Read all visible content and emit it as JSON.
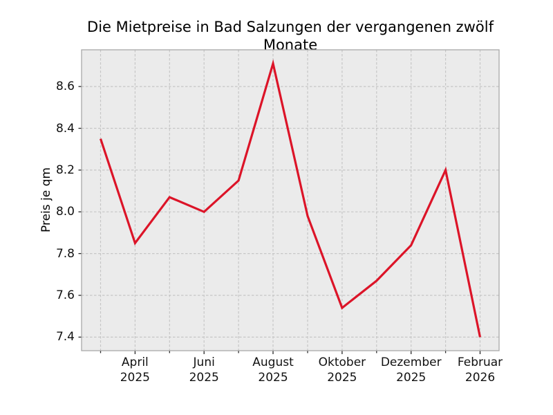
{
  "chart_data": {
    "type": "line",
    "title": "Die Mietpreise in Bad Salzungen der vergangenen zwölf Monate",
    "ylabel": "Preis je qm",
    "xlabel": "",
    "x": [
      "2025-03",
      "2025-04",
      "2025-05",
      "2025-06",
      "2025-07",
      "2025-08",
      "2025-09",
      "2025-10",
      "2025-11",
      "2025-12",
      "2026-01",
      "2026-02"
    ],
    "values": [
      8.35,
      7.85,
      8.07,
      8.0,
      8.15,
      8.71,
      7.98,
      7.54,
      7.67,
      7.84,
      8.2,
      7.4
    ],
    "series_name": "Preis je qm",
    "ylim": [
      7.335,
      8.776
    ],
    "yticks": [
      7.4,
      7.6,
      7.8,
      8.0,
      8.2,
      8.4,
      8.6
    ],
    "xticks": [
      {
        "month_index": 1,
        "label": "April\n2025"
      },
      {
        "month_index": 3,
        "label": "Juni\n2025"
      },
      {
        "month_index": 5,
        "label": "August\n2025"
      },
      {
        "month_index": 7,
        "label": "Oktober\n2025"
      },
      {
        "month_index": 9,
        "label": "Dezember\n2025"
      },
      {
        "month_index": 11,
        "label": "Februar\n2026"
      }
    ],
    "grid": "dashed, at every month (vertical) and every 0.2 (horizontal)",
    "legend": "none",
    "colors": {
      "line": "#dc1428",
      "plot_background": "#ebebeb",
      "figure_background": "#ffffff",
      "grid": "#c6c6c6",
      "spine": "#a8a8a8",
      "tick_mark": "#262626",
      "text": "#000000"
    }
  }
}
